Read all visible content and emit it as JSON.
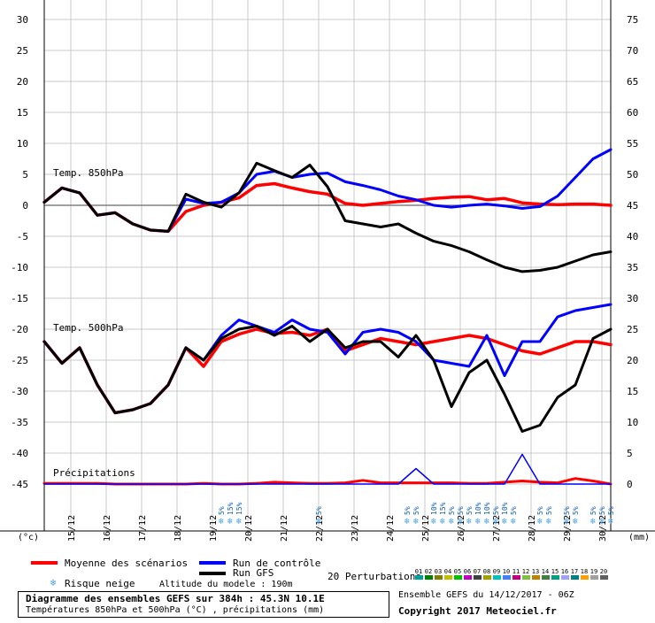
{
  "chart_data": {
    "type": "line",
    "title": "Diagramme des ensembles GEFS sur 384h : 45.3N 10.1E",
    "subtitle": "Températures 850hPa et 500hPa (°C) , précipitations (mm)",
    "run_label": "Ensemble GEFS du 14/12/2017 - 06Z",
    "copyright": "Copyright 2017 Meteociel.fr",
    "ylabel_left": "(°c)",
    "ylabel_right": "(mm)",
    "y_left_ticks": [
      30,
      25,
      20,
      15,
      10,
      5,
      0,
      -5,
      -10,
      -15,
      -20,
      -25,
      -30,
      -35,
      -40,
      -45
    ],
    "y_right_ticks": [
      75,
      70,
      65,
      60,
      55,
      50,
      45,
      40,
      35,
      30,
      25,
      20,
      15,
      10,
      5,
      0
    ],
    "x_tick_labels": [
      "15/12",
      "16/12",
      "17/12",
      "18/12",
      "19/12",
      "20/12",
      "21/12",
      "22/12",
      "23/12",
      "24/12",
      "25/12",
      "26/12",
      "27/12",
      "28/12",
      "29/12",
      "30/12"
    ],
    "panel_labels": {
      "t850": "Temp. 850hPa",
      "t500": "Temp. 500hPa",
      "precip": "Précipitations"
    },
    "grid": true,
    "x_range_hours": [
      0,
      384
    ],
    "ylim_left": [
      -45,
      30
    ],
    "series_850": [
      {
        "name": "Moyenne des scénarios",
        "color": "#ff0000",
        "x": [
          0,
          12,
          24,
          36,
          48,
          60,
          72,
          84,
          96,
          108,
          120,
          132,
          144,
          156,
          168,
          180,
          192,
          204,
          216,
          228,
          240,
          252,
          264,
          276,
          288,
          300,
          312,
          324,
          336,
          348,
          360,
          372,
          384
        ],
        "values": [
          0.5,
          2.8,
          2,
          -1.6,
          -1.2,
          -3,
          -4,
          -4.2,
          -1,
          0,
          0.5,
          1.2,
          3.2,
          3.5,
          2.8,
          2.2,
          1.8,
          0.3,
          0,
          0.3,
          0.6,
          0.8,
          1.1,
          1.3,
          1.4,
          0.9,
          1.1,
          0.4,
          0.2,
          0.1,
          0.2,
          0.2,
          0
        ]
      },
      {
        "name": "Run de contrôle",
        "color": "#0000ff",
        "x": [
          0,
          12,
          24,
          36,
          48,
          60,
          72,
          84,
          96,
          108,
          120,
          132,
          144,
          156,
          168,
          180,
          192,
          204,
          216,
          228,
          240,
          252,
          264,
          276,
          288,
          300,
          312,
          324,
          336,
          348,
          360,
          372,
          384
        ],
        "values": [
          0.5,
          2.8,
          2,
          -1.6,
          -1.2,
          -3,
          -4,
          -4.2,
          1,
          0.3,
          0.5,
          2,
          5,
          5.5,
          4.5,
          5,
          5.2,
          3.8,
          3.2,
          2.5,
          1.5,
          0.9,
          0,
          -0.3,
          0,
          0.2,
          -0.1,
          -0.5,
          -0.2,
          1.5,
          4.5,
          7.5,
          9
        ]
      },
      {
        "name": "Run GFS",
        "color": "#000000",
        "x": [
          0,
          12,
          24,
          36,
          48,
          60,
          72,
          84,
          96,
          108,
          120,
          132,
          144,
          156,
          168,
          180,
          192,
          204,
          216,
          228,
          240,
          252,
          264,
          276,
          288,
          300,
          312,
          324,
          336,
          348,
          360,
          372,
          384
        ],
        "values": [
          0.5,
          2.8,
          2,
          -1.6,
          -1.2,
          -3,
          -4,
          -4.2,
          1.8,
          0.5,
          -0.3,
          2,
          6.8,
          5.6,
          4.5,
          6.5,
          3,
          -2.5,
          -3,
          -3.5,
          -3,
          -4.5,
          -5.8,
          -6.5,
          -7.5,
          -8.8,
          -10,
          -10.7,
          -10.5,
          -10,
          -9,
          -8,
          -7.5
        ]
      }
    ],
    "series_500": [
      {
        "name": "Moyenne des scénarios",
        "color": "#ff0000",
        "x": [
          0,
          12,
          24,
          36,
          48,
          60,
          72,
          84,
          96,
          108,
          120,
          132,
          144,
          156,
          168,
          180,
          192,
          204,
          216,
          228,
          240,
          252,
          264,
          276,
          288,
          300,
          312,
          324,
          336,
          348,
          360,
          372,
          384
        ],
        "values": [
          -22,
          -25.5,
          -23,
          -29,
          -33.5,
          -33,
          -32,
          -29,
          -23,
          -26,
          -22,
          -20.8,
          -20,
          -20.7,
          -20.5,
          -21,
          -20,
          -23.5,
          -22.5,
          -21.5,
          -22,
          -22.5,
          -22,
          -21.5,
          -21,
          -21.5,
          -22.5,
          -23.5,
          -24,
          -23,
          -22,
          -22,
          -22.5
        ]
      },
      {
        "name": "Run de contrôle",
        "color": "#0000ff",
        "x": [
          0,
          12,
          24,
          36,
          48,
          60,
          72,
          84,
          96,
          108,
          120,
          132,
          144,
          156,
          168,
          180,
          192,
          204,
          216,
          228,
          240,
          252,
          264,
          276,
          288,
          300,
          312,
          324,
          336,
          348,
          360,
          372,
          384
        ],
        "values": [
          -22,
          -25.5,
          -23,
          -29,
          -33.5,
          -33,
          -32,
          -29,
          -23,
          -25,
          -21,
          -18.5,
          -19.5,
          -20.5,
          -18.5,
          -20,
          -20.5,
          -24,
          -20.5,
          -20,
          -20.5,
          -22,
          -25,
          -25.5,
          -26,
          -21,
          -27.5,
          -22,
          -22,
          -18,
          -17,
          -16.5,
          -16
        ]
      },
      {
        "name": "Run GFS",
        "color": "#000000",
        "x": [
          0,
          12,
          24,
          36,
          48,
          60,
          72,
          84,
          96,
          108,
          120,
          132,
          144,
          156,
          168,
          180,
          192,
          204,
          216,
          228,
          240,
          252,
          264,
          276,
          288,
          300,
          312,
          324,
          336,
          348,
          360,
          372,
          384
        ],
        "values": [
          -22,
          -25.5,
          -23,
          -29,
          -33.5,
          -33,
          -32,
          -29,
          -23,
          -25,
          -21.5,
          -20,
          -19.5,
          -21,
          -19.5,
          -22,
          -20,
          -23,
          -22,
          -22,
          -24.5,
          -21,
          -25,
          -32.5,
          -27,
          -25,
          -30.5,
          -36.5,
          -35.5,
          -31,
          -29,
          -21.5,
          -20
        ]
      }
    ],
    "series_precip": [
      {
        "name": "Moyenne des scénarios",
        "color": "#ff0000",
        "x": [
          0,
          12,
          24,
          36,
          48,
          60,
          72,
          84,
          96,
          108,
          120,
          132,
          144,
          156,
          168,
          180,
          192,
          204,
          216,
          228,
          240,
          252,
          264,
          276,
          288,
          300,
          312,
          324,
          336,
          348,
          360,
          372,
          384
        ],
        "values": [
          0.1,
          0.1,
          0.1,
          0.1,
          0,
          0,
          0,
          0,
          0,
          0.1,
          0,
          0,
          0.1,
          0.3,
          0.2,
          0.1,
          0.1,
          0.2,
          0.6,
          0.2,
          0.2,
          0.2,
          0.2,
          0.2,
          0.1,
          0.1,
          0.3,
          0.5,
          0.3,
          0.2,
          0.9,
          0.5,
          0
        ]
      },
      {
        "name": "Run de contrôle",
        "color": "#0000ff",
        "x": [
          0,
          12,
          24,
          36,
          48,
          60,
          72,
          84,
          96,
          108,
          120,
          132,
          144,
          156,
          168,
          180,
          192,
          204,
          216,
          228,
          240,
          252,
          264,
          276,
          288,
          300,
          312,
          324,
          336,
          348,
          360,
          372,
          384
        ],
        "values": [
          0,
          0,
          0,
          0,
          0,
          0,
          0,
          0,
          0,
          0,
          0,
          0,
          0,
          0,
          0,
          0,
          0,
          0,
          0,
          0,
          0,
          2.5,
          0,
          0,
          0,
          0,
          0,
          4.8,
          0,
          0,
          0,
          0,
          0
        ]
      }
    ],
    "snow_risk": [
      {
        "hour": 120,
        "labels": [
          "5%"
        ]
      },
      {
        "hour": 126,
        "labels": [
          "15%"
        ]
      },
      {
        "hour": 132,
        "labels": [
          "15%"
        ]
      },
      {
        "hour": 186,
        "labels": [
          "5%"
        ]
      },
      {
        "hour": 246,
        "labels": [
          "5%"
        ]
      },
      {
        "hour": 252,
        "labels": [
          "5%"
        ]
      },
      {
        "hour": 264,
        "labels": [
          "10%"
        ]
      },
      {
        "hour": 270,
        "labels": [
          "15%"
        ]
      },
      {
        "hour": 276,
        "labels": [
          "5%"
        ]
      },
      {
        "hour": 282,
        "labels": [
          "5%"
        ]
      },
      {
        "hour": 288,
        "labels": [
          "5%"
        ]
      },
      {
        "hour": 294,
        "labels": [
          "10%"
        ]
      },
      {
        "hour": 300,
        "labels": [
          "10%"
        ]
      },
      {
        "hour": 306,
        "labels": [
          "5%"
        ]
      },
      {
        "hour": 312,
        "labels": [
          "10%"
        ]
      },
      {
        "hour": 318,
        "labels": [
          "5%"
        ]
      },
      {
        "hour": 336,
        "labels": [
          "5%"
        ]
      },
      {
        "hour": 342,
        "labels": [
          "5%"
        ]
      },
      {
        "hour": 354,
        "labels": [
          "5%"
        ]
      },
      {
        "hour": 360,
        "labels": [
          "5%"
        ]
      },
      {
        "hour": 372,
        "labels": [
          "5%"
        ]
      },
      {
        "hour": 378,
        "labels": [
          "5%"
        ]
      },
      {
        "hour": 384,
        "labels": [
          "5%"
        ]
      },
      {
        "hour": 390,
        "labels": [
          "5%"
        ]
      }
    ]
  },
  "legend": {
    "mean": "Moyenne des scénarios",
    "control": "Run de contrôle",
    "gfs": "Run GFS",
    "perturbations": "20 Perturbations",
    "snow_risk": "Risque neige",
    "altitude": "Altitude du modele : 190m",
    "perturbation_ids": [
      "01",
      "02",
      "03",
      "04",
      "05",
      "06",
      "07",
      "08",
      "09",
      "10",
      "11",
      "12",
      "13",
      "14",
      "15",
      "16",
      "17",
      "18",
      "19",
      "20"
    ],
    "perturbation_colors": [
      "#00a0a0",
      "#008000",
      "#808000",
      "#c0c000",
      "#00c000",
      "#c000c0",
      "#404040",
      "#a0a000",
      "#00c0c0",
      "#4080ff",
      "#c00080",
      "#80c040",
      "#c08000",
      "#408040",
      "#00a080",
      "#a0a0ff",
      "#008080",
      "#ffa000",
      "#a0a0a0",
      "#606060"
    ],
    "mean_color": "#ff0000",
    "control_color": "#0000ff",
    "gfs_color": "#000000"
  }
}
